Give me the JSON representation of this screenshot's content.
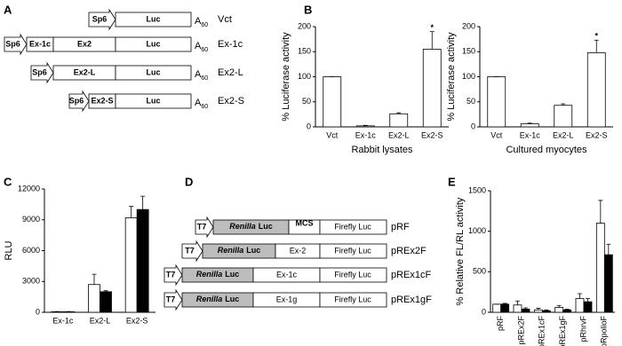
{
  "panel_letters": [
    "A",
    "B",
    "C",
    "D",
    "E"
  ],
  "constructs_a": {
    "poly_a": {
      "base": "A",
      "sub": "60"
    },
    "rows": [
      {
        "promoter": "Sp6",
        "segments": [
          "Luc"
        ],
        "name": "Vct"
      },
      {
        "promoter": "Sp6",
        "segments": [
          "Ex-1c",
          "Ex2",
          "Luc"
        ],
        "name": "Ex-1c"
      },
      {
        "promoter": "Sp6",
        "segments": [
          "Ex2-L",
          "Luc"
        ],
        "name": "Ex2-L"
      },
      {
        "promoter": "Sp6",
        "segments": [
          "Ex2-S",
          "Luc"
        ],
        "name": "Ex2-S"
      }
    ]
  },
  "constructs_d": {
    "rows": [
      {
        "promoter": "T7",
        "renilla_italic": "Renilla",
        "renilla_rest": "Luc",
        "insert": "MCS",
        "firefly": "Firefly Luc",
        "name": "pRF"
      },
      {
        "promoter": "T7",
        "renilla_italic": "Renilla",
        "renilla_rest": "Luc",
        "insert": "Ex-2",
        "firefly": "Firefly Luc",
        "name": "pREx2F"
      },
      {
        "promoter": "T7",
        "renilla_italic": "Renilla",
        "renilla_rest": "Luc",
        "insert": "Ex-1c",
        "firefly": "Firefly Luc",
        "name": "pREx1cF"
      },
      {
        "promoter": "T7",
        "renilla_italic": "Renilla",
        "renilla_rest": "Luc",
        "insert": "Ex-1g",
        "firefly": "Firefly Luc",
        "name": "pREx1gF"
      }
    ]
  },
  "chart_data": [
    {
      "type": "bar",
      "ylabel": "% Luciferase activity",
      "xlabel": "Rabbit lysates",
      "categories": [
        "Vct",
        "Ex-1c",
        "Ex2-L",
        "Ex2-S"
      ],
      "series": [
        {
          "color": "#ffffff",
          "values": [
            100,
            2,
            26,
            155
          ],
          "errors": [
            0,
            1,
            2,
            35
          ]
        }
      ],
      "ylim": [
        0,
        200
      ],
      "yticks": [
        0,
        50,
        100,
        150,
        200
      ],
      "annotations": [
        {
          "text": "*",
          "category": "Ex2-S"
        }
      ]
    },
    {
      "type": "bar",
      "ylabel": "% Luciferase activity",
      "xlabel": "Cultured myocytes",
      "categories": [
        "Vct",
        "Ex-1c",
        "Ex2-L",
        "Ex2-S"
      ],
      "series": [
        {
          "color": "#ffffff",
          "values": [
            100,
            6,
            43,
            148
          ],
          "errors": [
            0,
            1.5,
            3,
            25
          ]
        }
      ],
      "ylim": [
        0,
        200
      ],
      "yticks": [
        0,
        50,
        100,
        150,
        200
      ],
      "annotations": [
        {
          "text": "*",
          "category": "Ex2-S"
        }
      ]
    },
    {
      "type": "bar",
      "ylabel": "RLU",
      "categories": [
        "Ex-1c",
        "Ex2-L",
        "Ex2-S"
      ],
      "series": [
        {
          "color": "#ffffff",
          "values": [
            50,
            2700,
            9200
          ],
          "errors": [
            20,
            1000,
            1100
          ]
        },
        {
          "color": "#000000",
          "values": [
            50,
            2000,
            10000
          ],
          "errors": [
            20,
            100,
            1300
          ]
        }
      ],
      "ylim": [
        0,
        12000
      ],
      "yticks": [
        0,
        3000,
        6000,
        9000,
        12000
      ]
    },
    {
      "type": "bar",
      "ylabel": "% Relative FL/RL activity",
      "categories": [
        "pRF",
        "pREx2F",
        "pREx1cF",
        "pREx1gF",
        "pRhrvF",
        "pRpolioF"
      ],
      "series": [
        {
          "color": "#ffffff",
          "values": [
            100,
            90,
            30,
            60,
            170,
            1100
          ],
          "errors": [
            0,
            50,
            20,
            25,
            60,
            280
          ]
        },
        {
          "color": "#000000",
          "values": [
            100,
            40,
            20,
            30,
            130,
            710
          ],
          "errors": [
            10,
            15,
            10,
            10,
            40,
            130
          ]
        }
      ],
      "ylim": [
        0,
        1500
      ],
      "yticks": [
        0,
        500,
        1000,
        1500
      ]
    }
  ]
}
